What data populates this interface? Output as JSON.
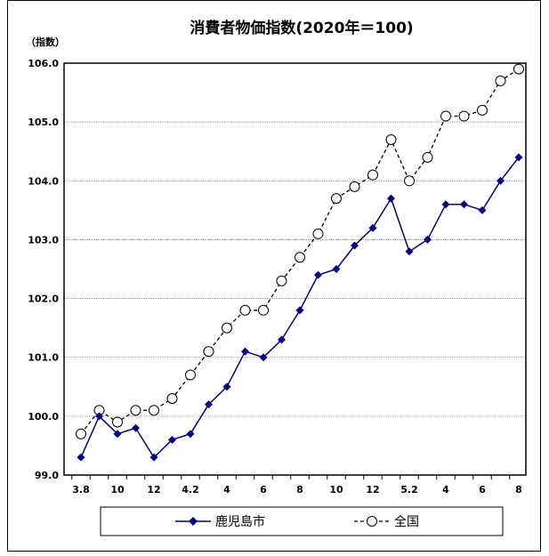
{
  "chart_data": {
    "type": "line",
    "title": "消費者物価指数(2020年＝100)",
    "ylabel": "（指数）",
    "xlabel": "",
    "ylim": [
      99.0,
      106.0
    ],
    "yticks": [
      "99.0",
      "100.0",
      "101.0",
      "102.0",
      "103.0",
      "104.0",
      "105.0",
      "106.0"
    ],
    "x_tick_labels": [
      "3.8",
      "",
      "10",
      "",
      "12",
      "",
      "4.2",
      "",
      "4",
      "",
      "6",
      "",
      "8",
      "",
      "10",
      "",
      "12",
      "",
      "5.2",
      "",
      "4",
      "",
      "6",
      "",
      "8"
    ],
    "grid": true,
    "legend_position": "bottom",
    "series": [
      {
        "name": "鹿児島市",
        "color": "#000080",
        "marker": "filled-diamond",
        "line_style": "solid",
        "values": [
          99.3,
          100.0,
          99.7,
          99.8,
          99.3,
          99.6,
          99.7,
          100.2,
          100.5,
          101.1,
          101.0,
          101.3,
          101.8,
          102.4,
          102.5,
          102.9,
          103.2,
          103.7,
          102.8,
          103.0,
          103.6,
          103.6,
          103.5,
          104.0,
          104.4
        ]
      },
      {
        "name": "全国",
        "color": "#000000",
        "marker": "open-circle",
        "line_style": "dashed",
        "values": [
          99.7,
          100.1,
          99.9,
          100.1,
          100.1,
          100.3,
          100.7,
          101.1,
          101.5,
          101.8,
          101.8,
          102.3,
          102.7,
          103.1,
          103.7,
          103.9,
          104.1,
          104.7,
          104.0,
          104.4,
          105.1,
          105.1,
          105.2,
          105.7,
          105.9
        ]
      }
    ]
  }
}
